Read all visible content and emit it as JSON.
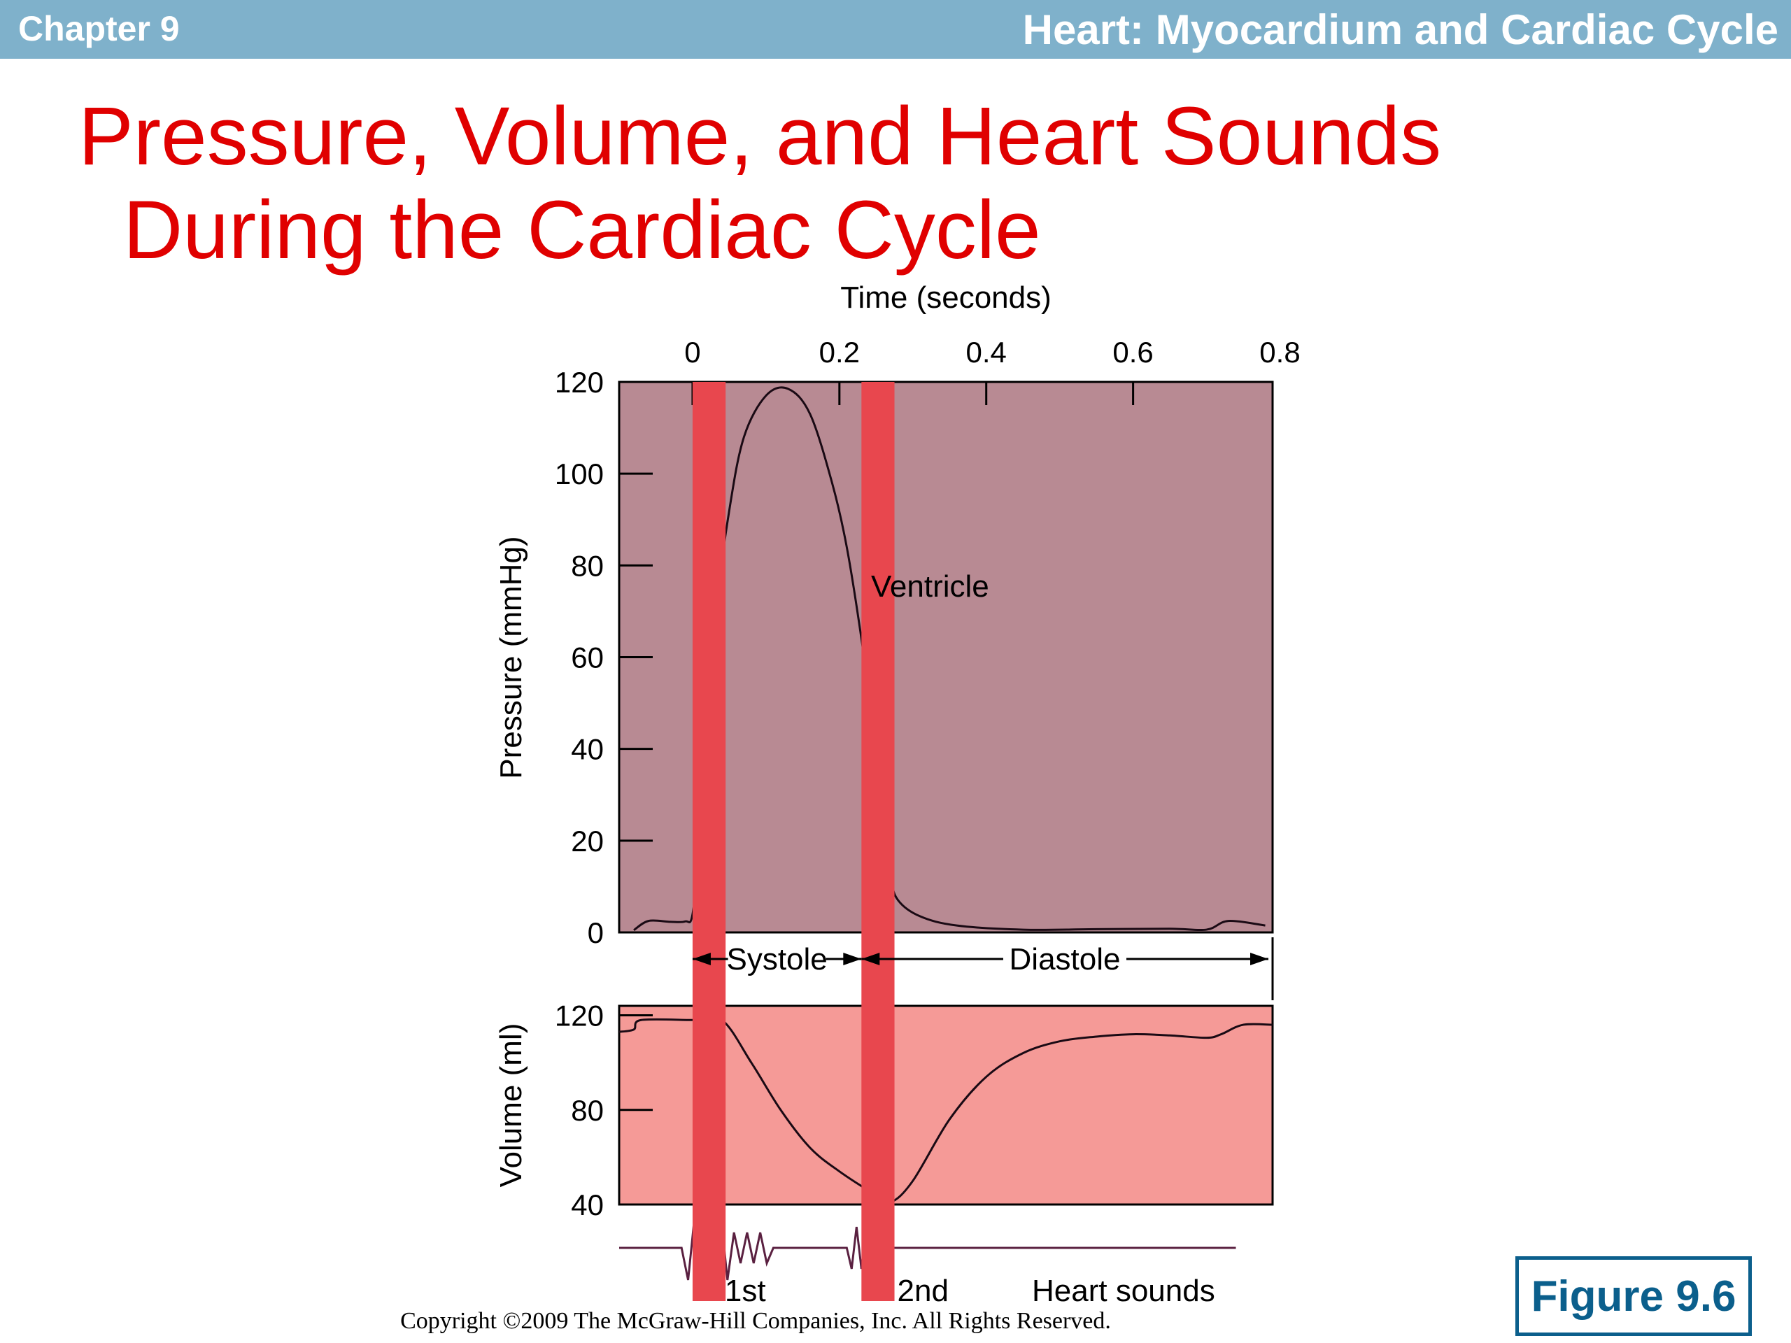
{
  "header": {
    "chapter": "Chapter 9",
    "title": "Heart: Myocardium and Cardiac Cycle"
  },
  "slide_title": {
    "line1": "Pressure, Volume, and Heart Sounds",
    "line2": "During the Cardiac Cycle"
  },
  "figure_label": "Figure 9.6",
  "copyright": "Copyright ©2009 The McGraw-Hill Companies, Inc. All Rights Reserved.",
  "colors": {
    "header_bg": "#7fb1cb",
    "title_text": "#e00000",
    "pressure_panel": "#b88a93",
    "volume_panel": "#f59a97",
    "highlight_band": "#e8474e",
    "figure_label": "#0b5f8c"
  },
  "chart_data": [
    {
      "type": "line",
      "xlabel": "Time (seconds)",
      "ylabel": "Pressure (mmHg)",
      "x_ticks": [
        0,
        0.2,
        0.4,
        0.6,
        0.8
      ],
      "x_tick_labels": [
        "0",
        "0.2",
        "0.4",
        "0.6",
        "0.8"
      ],
      "y_ticks": [
        0,
        20,
        40,
        60,
        80,
        100,
        120
      ],
      "y_tick_labels": [
        "0",
        "20",
        "40",
        "60",
        "80",
        "100",
        "120"
      ],
      "xlim": [
        -0.1,
        0.79
      ],
      "ylim": [
        0,
        120
      ],
      "series": [
        {
          "name": "Ventricle",
          "points": [
            [
              -0.08,
              0.5
            ],
            [
              -0.06,
              2.5
            ],
            [
              -0.03,
              2.3
            ],
            [
              -0.01,
              2.4
            ],
            [
              0.0,
              4
            ],
            [
              0.01,
              20
            ],
            [
              0.02,
              45
            ],
            [
              0.03,
              68
            ],
            [
              0.05,
              92
            ],
            [
              0.07,
              108
            ],
            [
              0.1,
              117
            ],
            [
              0.13,
              118.5
            ],
            [
              0.16,
              113
            ],
            [
              0.19,
              98
            ],
            [
              0.21,
              84
            ],
            [
              0.23,
              64
            ],
            [
              0.25,
              40
            ],
            [
              0.26,
              24
            ],
            [
              0.27,
              12
            ],
            [
              0.28,
              7
            ],
            [
              0.31,
              3.5
            ],
            [
              0.36,
              1.5
            ],
            [
              0.45,
              0.6
            ],
            [
              0.55,
              0.7
            ],
            [
              0.65,
              0.8
            ],
            [
              0.7,
              0.6
            ],
            [
              0.73,
              2.5
            ],
            [
              0.78,
              1.5
            ]
          ]
        }
      ],
      "highlight_bands_x": [
        [
          0.0,
          0.045
        ],
        [
          0.23,
          0.275
        ]
      ],
      "phases": [
        {
          "label": "Systole",
          "from": 0.0,
          "to": 0.23
        },
        {
          "label": "Diastole",
          "from": 0.23,
          "to": 0.79
        }
      ]
    },
    {
      "type": "line",
      "ylabel": "Volume (ml)",
      "y_ticks": [
        40,
        80,
        120
      ],
      "y_tick_labels": [
        "40",
        "80",
        "120"
      ],
      "ylim": [
        40,
        124
      ],
      "series": [
        {
          "name": "",
          "points": [
            [
              -0.1,
              113
            ],
            [
              -0.08,
              114
            ],
            [
              -0.07,
              118
            ],
            [
              0.0,
              118
            ],
            [
              0.04,
              118
            ],
            [
              0.08,
              100
            ],
            [
              0.12,
              80
            ],
            [
              0.16,
              64
            ],
            [
              0.2,
              54
            ],
            [
              0.25,
              44
            ],
            [
              0.27,
              41
            ],
            [
              0.3,
              50
            ],
            [
              0.35,
              76
            ],
            [
              0.4,
              94
            ],
            [
              0.45,
              104
            ],
            [
              0.5,
              109
            ],
            [
              0.55,
              111
            ],
            [
              0.6,
              112
            ],
            [
              0.65,
              111.5
            ],
            [
              0.7,
              110.5
            ],
            [
              0.72,
              112
            ],
            [
              0.75,
              116
            ],
            [
              0.79,
              116
            ]
          ]
        }
      ]
    },
    {
      "type": "line",
      "title": "Heart sounds",
      "annotations": [
        {
          "label": "1st",
          "x": 0.04
        },
        {
          "label": "2nd",
          "x": 0.275
        }
      ],
      "bursts": [
        [
          -0.015,
          0.11
        ],
        [
          0.21,
          0.27
        ]
      ],
      "baseline_x": [
        -0.1,
        0.74
      ]
    }
  ],
  "annotations": {
    "ventricle_label": "Ventricle"
  }
}
